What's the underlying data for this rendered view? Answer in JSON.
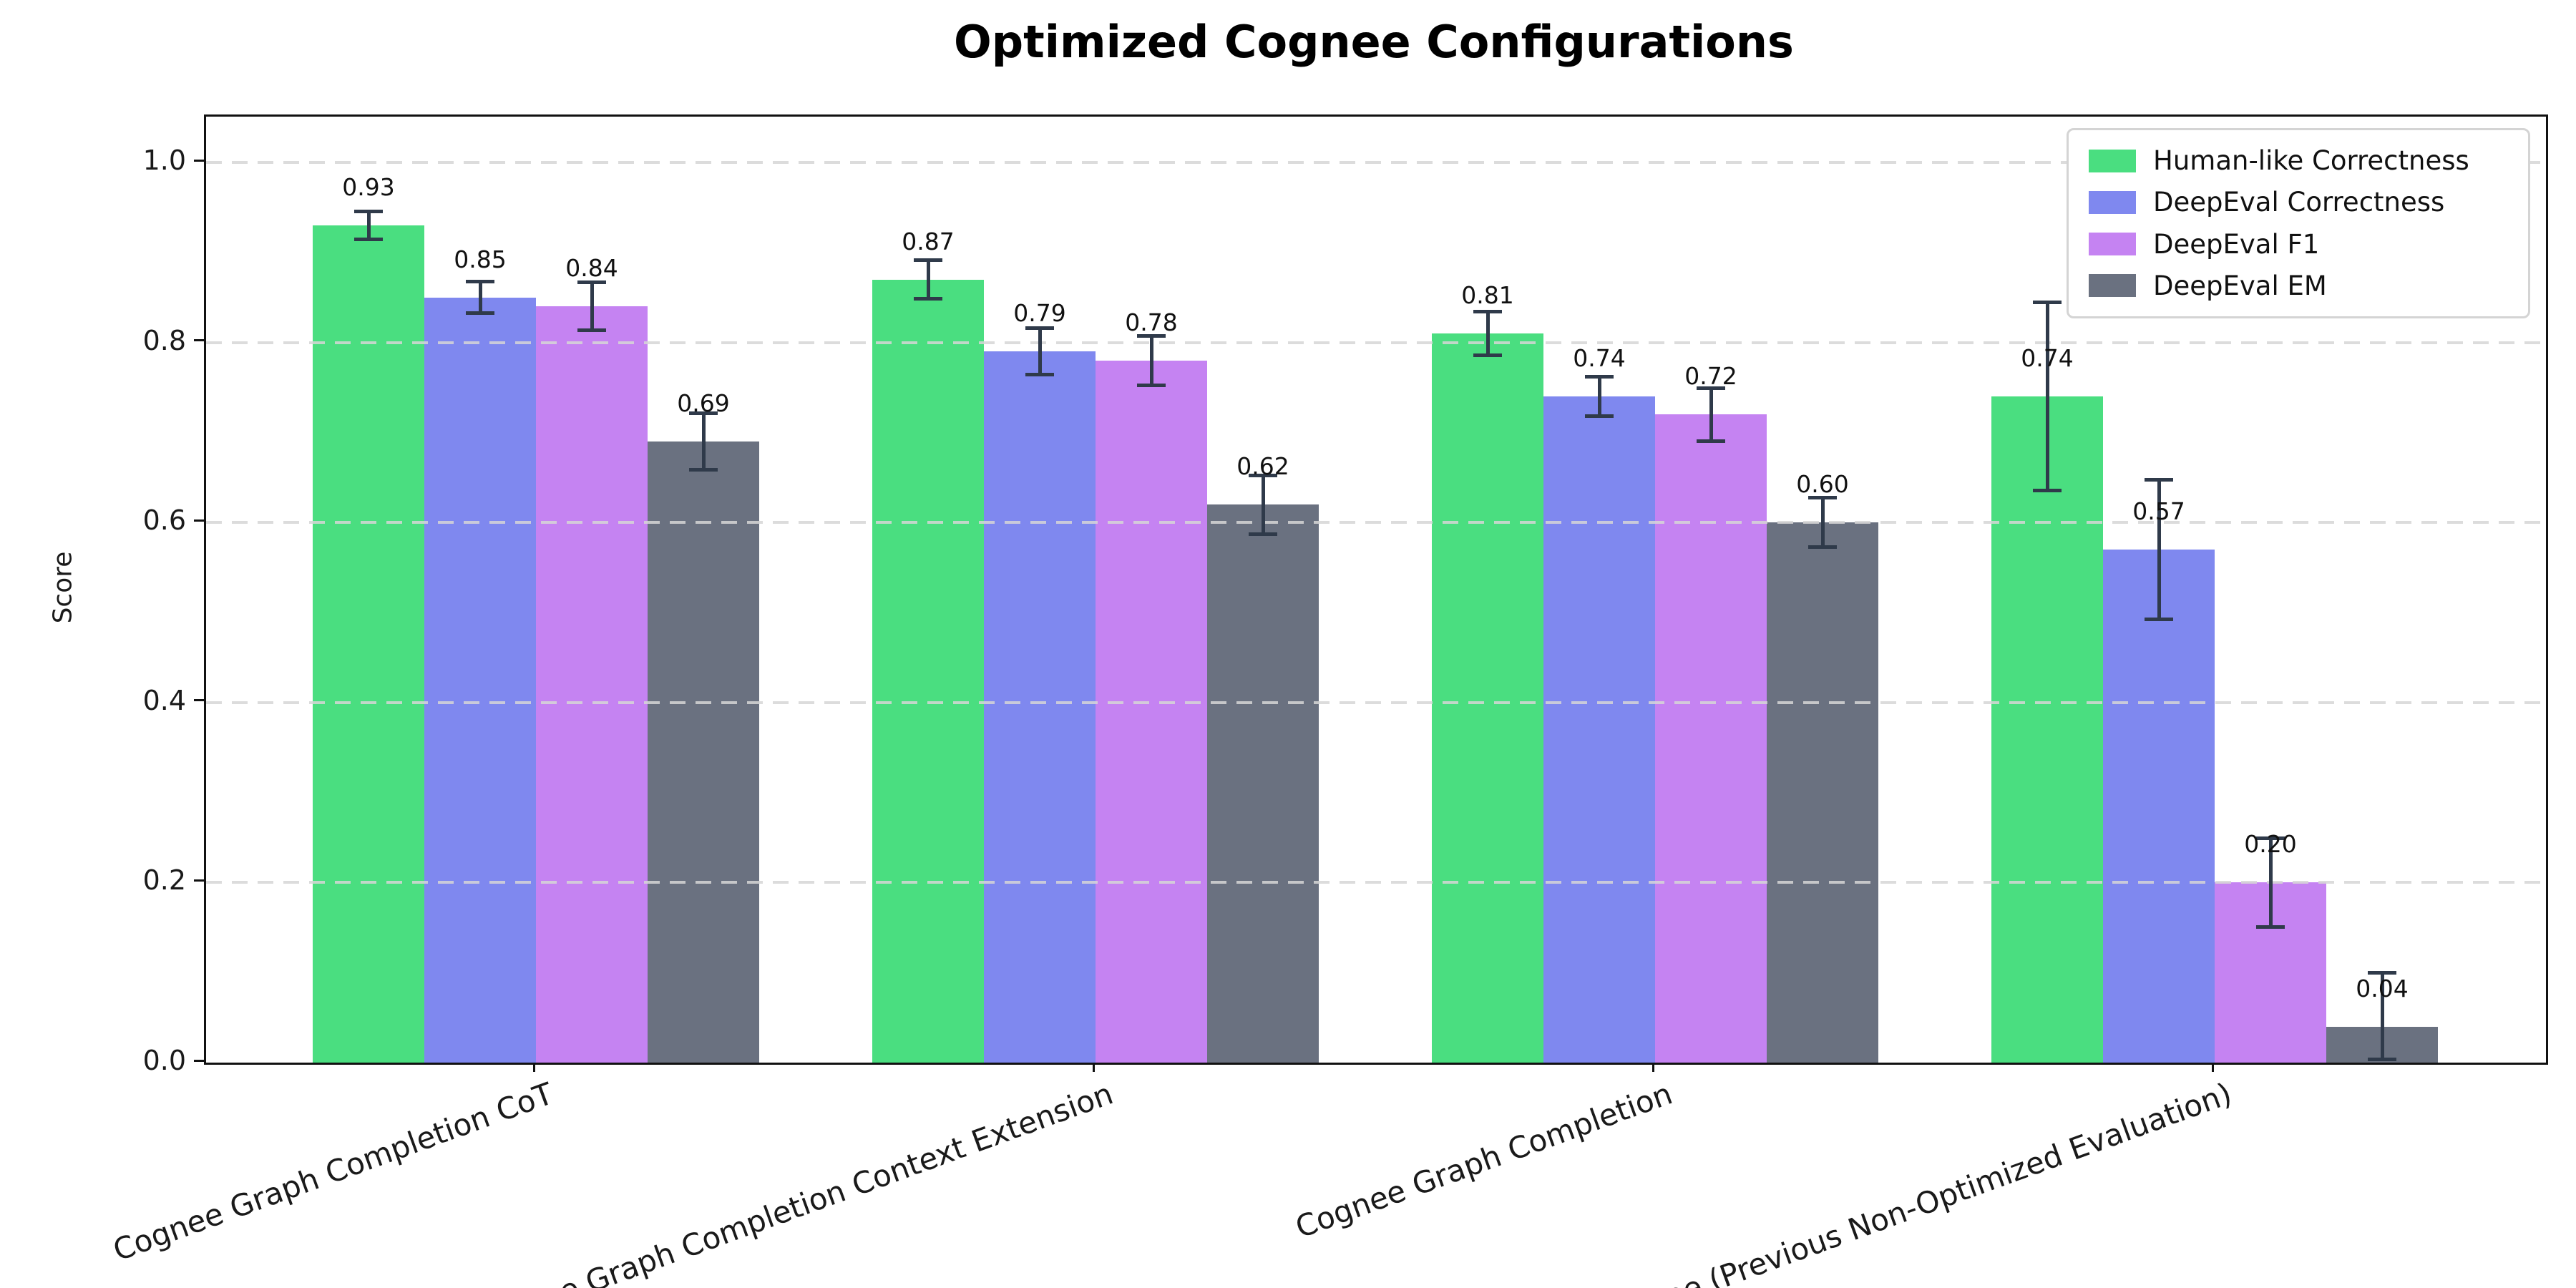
{
  "chart_data": {
    "type": "bar",
    "title": "Optimized Cognee Configurations",
    "ylabel": "Score",
    "xlabel": "",
    "ylim": [
      0,
      1.05
    ],
    "yticks": [
      0.0,
      0.2,
      0.4,
      0.6,
      0.8,
      1.0
    ],
    "grid": "horizontal dashed, drawn over bars",
    "legend_position": "upper right",
    "categories": [
      "Cognee Graph Completion CoT",
      "Cognee Graph Completion Context Extension",
      "Cognee Graph Completion",
      "Cognee (Previous Non-Optimized Evaluation)"
    ],
    "series": [
      {
        "name": "Human-like Correctness",
        "color": "#4ade80",
        "values": [
          0.93,
          0.87,
          0.81,
          0.74
        ],
        "errors": [
          0.016,
          0.022,
          0.025,
          0.105
        ]
      },
      {
        "name": "DeepEval Correctness",
        "color": "#7f88ef",
        "values": [
          0.85,
          0.79,
          0.74,
          0.57
        ],
        "errors": [
          0.018,
          0.026,
          0.022,
          0.078
        ]
      },
      {
        "name": "DeepEval F1",
        "color": "#c583f2",
        "values": [
          0.84,
          0.78,
          0.72,
          0.2
        ],
        "errors": [
          0.027,
          0.028,
          0.03,
          0.05
        ]
      },
      {
        "name": "DeepEval EM",
        "color": "#6a7180",
        "values": [
          0.69,
          0.62,
          0.6,
          0.04
        ],
        "errors": [
          0.032,
          0.033,
          0.028,
          0.06
        ]
      }
    ],
    "bar_value_labels": [
      [
        "0.93",
        "0.85",
        "0.84",
        "0.69"
      ],
      [
        "0.87",
        "0.79",
        "0.78",
        "0.62"
      ],
      [
        "0.81",
        "0.74",
        "0.72",
        "0.60"
      ],
      [
        "0.74",
        "0.57",
        "0.20",
        "0.04"
      ]
    ],
    "error_bar_color": "#2f3a4a",
    "axis_color": "#111111",
    "gridline_color": "#d6d6d6"
  }
}
